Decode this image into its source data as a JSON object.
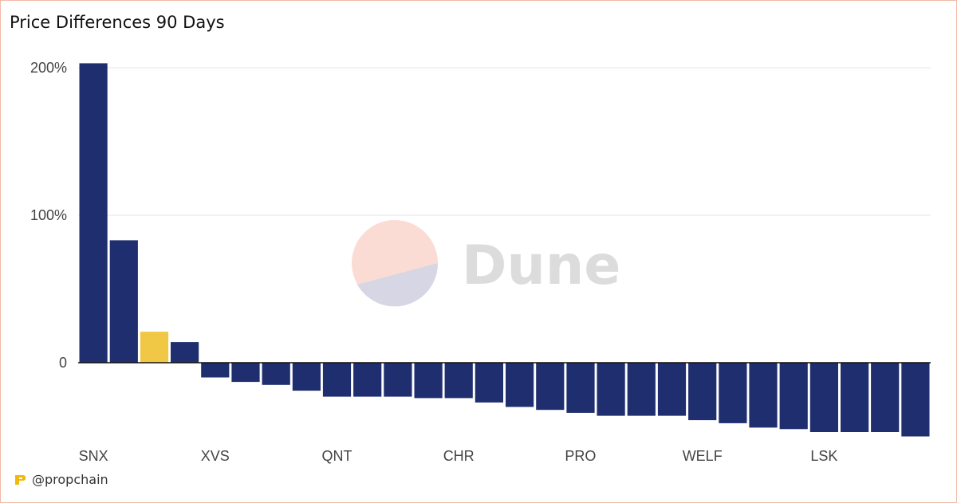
{
  "chart_data": {
    "type": "bar",
    "title": "Price Differences 90 Days",
    "xlabel": "",
    "ylabel": "",
    "ylim": [
      -52,
      205
    ],
    "yticks": [
      {
        "value": 200,
        "label": "200%"
      },
      {
        "value": 100,
        "label": "100%"
      },
      {
        "value": 0,
        "label": "0"
      }
    ],
    "categories": [
      "SNX",
      "",
      "",
      "",
      "XVS",
      "",
      "",
      "",
      "QNT",
      "",
      "",
      "",
      "CHR",
      "",
      "",
      "",
      "PRO",
      "",
      "",
      "",
      "WELF",
      "",
      "",
      "",
      "LSK",
      "",
      "",
      ""
    ],
    "values": [
      203,
      83,
      21,
      14,
      -10,
      -13,
      -15,
      -19,
      -23,
      -23,
      -23,
      -24,
      -24,
      -27,
      -30,
      -32,
      -34,
      -36,
      -36,
      -36,
      -39,
      -41,
      -44,
      -45,
      -47,
      -47,
      -47,
      -50
    ],
    "highlight_index": 2,
    "colors": {
      "bar": "#1f2e6e",
      "highlight": "#f0c845",
      "grid": "#e4e4e4",
      "zero_line": "#111111"
    },
    "grid": true,
    "legend": "none"
  },
  "watermark": {
    "text": "Dune"
  },
  "footer": {
    "handle": "@propchain",
    "icon": "propchain-logo-icon"
  }
}
